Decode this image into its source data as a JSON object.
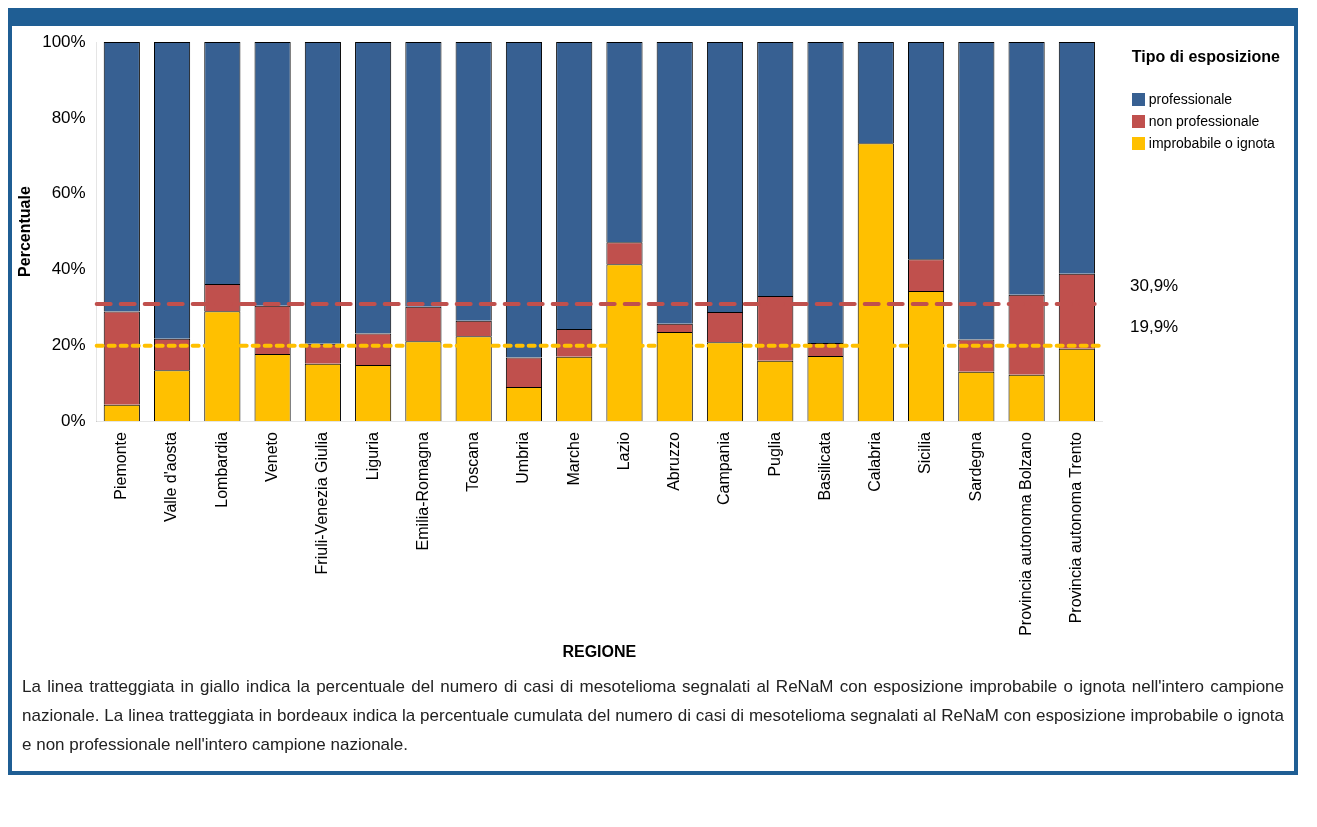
{
  "chart_data": {
    "type": "bar",
    "stacked": true,
    "xlabel": "REGIONE",
    "ylabel": "Percentuale",
    "legend_title": "Tipo di esposizione",
    "legend": "top right",
    "grid": false,
    "categories": [
      "Piemonte",
      "Valle d'aosta",
      "Lombardia",
      "Veneto",
      "Friuli-Venezia Giulia",
      "Liguria",
      "Emilia-Romagna",
      "Toscana",
      "Umbria",
      "Marche",
      "Lazio",
      "Abruzzo",
      "Campania",
      "Puglia",
      "Basilicata",
      "Calabria",
      "Sicilia",
      "Sardegna",
      "Provincia autonoma Bolzano",
      "Provincia autonoma Trento"
    ],
    "series": [
      {
        "name": "improbabile o ignota",
        "color": "#ffc000",
        "values": [
          4.3,
          13.4,
          29.0,
          17.7,
          15.1,
          14.8,
          21.1,
          22.4,
          9.0,
          17.0,
          41.4,
          23.5,
          20.8,
          15.9,
          17.2,
          73.3,
          34.3,
          13.0,
          12.2,
          19.1
        ]
      },
      {
        "name": "non professionale",
        "color": "#c0504d",
        "values": [
          24.6,
          8.3,
          7.2,
          12.7,
          5.3,
          8.3,
          9.1,
          4.1,
          7.8,
          7.3,
          5.8,
          2.2,
          8.0,
          17.1,
          3.4,
          0,
          8.4,
          8.5,
          21.1,
          19.8
        ]
      },
      {
        "name": "professionale",
        "color": "#376092",
        "values": [
          71.1,
          78.3,
          63.8,
          69.6,
          79.6,
          76.9,
          69.8,
          73.5,
          83.2,
          75.7,
          52.8,
          74.3,
          71.2,
          67.0,
          79.4,
          26.7,
          57.3,
          78.5,
          66.7,
          61.1
        ]
      }
    ],
    "ylim": [
      0,
      100
    ],
    "yticks": [
      {
        "value": 0,
        "label": "0%"
      },
      {
        "value": 20,
        "label": "20%"
      },
      {
        "value": 40,
        "label": "40%"
      },
      {
        "value": 60,
        "label": "60%"
      },
      {
        "value": 80,
        "label": "80%"
      },
      {
        "value": 100,
        "label": "100%"
      }
    ],
    "ref_lines": [
      {
        "axis": "y",
        "value": 30.9,
        "label": "30,9%",
        "color": "#c0504d",
        "line_style": "dashed"
      },
      {
        "axis": "y",
        "value": 19.9,
        "label": "19,9%",
        "color": "#ffc000",
        "line_style": "dotted"
      }
    ],
    "annotations": [
      "La linea tratteggiata in giallo indica la percentuale del numero di casi di mesotelioma segnalati al ReNaM con esposizione improbabile o ignota nell'intero campione nazionale. La linea tratteggiata in bordeaux indica la percentuale cumulata del numero di casi di mesotelioma segnalati al ReNaM con esposizione improbabile o ignota e non professionale nell'intero campione nazionale."
    ]
  }
}
